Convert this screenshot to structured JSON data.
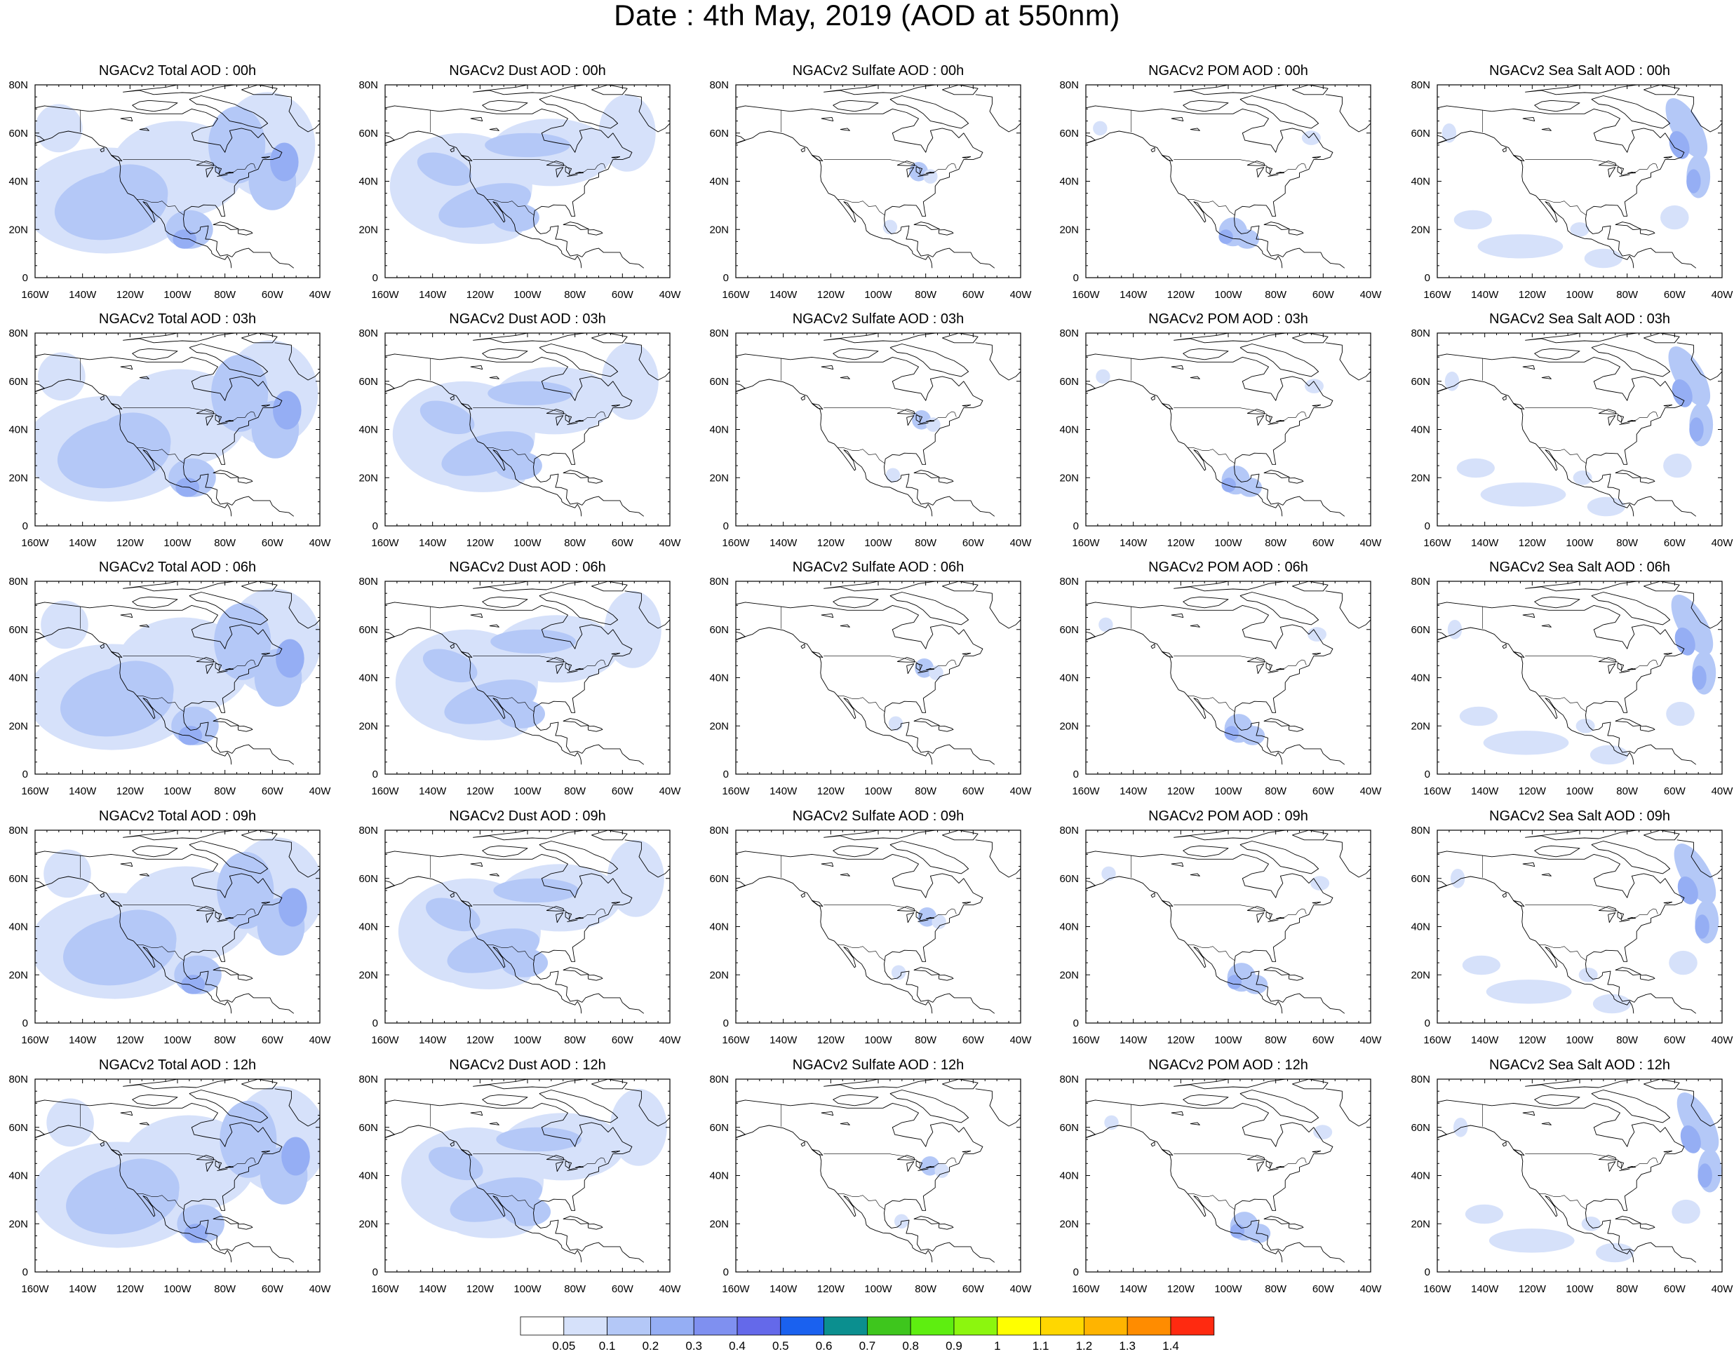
{
  "title": "Date : 4th May, 2019 (AOD at 550nm)",
  "panels": [
    [
      "NGACv2 Total AOD : 00h",
      "NGACv2 Dust AOD : 00h",
      "NGACv2 Sulfate AOD : 00h",
      "NGACv2 POM AOD : 00h",
      "NGACv2 Sea Salt AOD : 00h"
    ],
    [
      "NGACv2 Total AOD : 03h",
      "NGACv2 Dust AOD : 03h",
      "NGACv2 Sulfate AOD : 03h",
      "NGACv2 POM AOD : 03h",
      "NGACv2 Sea Salt AOD : 03h"
    ],
    [
      "NGACv2 Total AOD : 06h",
      "NGACv2 Dust AOD : 06h",
      "NGACv2 Sulfate AOD : 06h",
      "NGACv2 POM AOD : 06h",
      "NGACv2 Sea Salt AOD : 06h"
    ],
    [
      "NGACv2 Total AOD : 09h",
      "NGACv2 Dust AOD : 09h",
      "NGACv2 Sulfate AOD : 09h",
      "NGACv2 POM AOD : 09h",
      "NGACv2 Sea Salt  AOD : 09h"
    ],
    [
      "NGACv2 Total AOD  : 12h",
      "NGACv2 Dust AOD : 12h",
      "NGACv2 Sulfate AOD : 12h",
      "NGACv2 POM  AOD : 12h",
      "NGACv2 Sea Salt  AOD : 12h"
    ]
  ],
  "axes": {
    "lon_ticks": [
      "160W",
      "140W",
      "120W",
      "100W",
      "80W",
      "60W",
      "40W"
    ],
    "lat_ticks": [
      "0",
      "20N",
      "40N",
      "60N",
      "80N"
    ]
  },
  "colorbar": {
    "colors": [
      "#ffffff",
      "#d6e1fa",
      "#b4c8f7",
      "#95aef4",
      "#7f90f0",
      "#6469ea",
      "#1a61ef",
      "#0b8f8f",
      "#3ec61d",
      "#5eee10",
      "#8cf60e",
      "#c0f544",
      "#ffff00",
      "#ffd700",
      "#ffb400",
      "#ff8c00",
      "#ff6400",
      "#ff2a10"
    ],
    "labels": [
      "0.05",
      "0.1",
      "0.2",
      "0.3",
      "0.4",
      "0.5",
      "0.6",
      "0.7",
      "0.8",
      "0.9",
      "1",
      "1.1",
      "1.2",
      "1.3",
      "1.4"
    ]
  }
}
